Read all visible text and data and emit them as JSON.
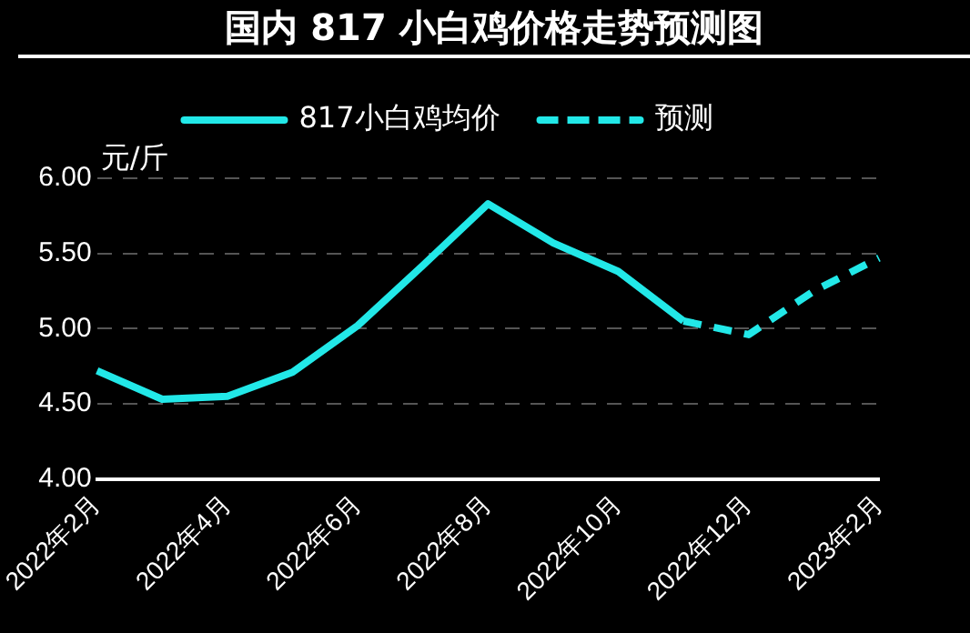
{
  "chart_data": {
    "type": "line",
    "title": "国内 817 小白鸡价格走势预测图",
    "ylabel": "元/斤",
    "categories": [
      "2022年2月",
      null,
      "2022年4月",
      null,
      "2022年6月",
      null,
      "2022年8月",
      null,
      "2022年10月",
      null,
      "2022年12月",
      null,
      "2023年2月"
    ],
    "series": [
      {
        "name": "817小白鸡均价",
        "color": "#22e8e8",
        "line_style": "solid",
        "values": [
          4.72,
          4.53,
          4.55,
          4.71,
          5.02,
          5.42,
          5.83,
          5.57,
          5.38,
          5.05,
          null,
          null,
          null
        ]
      },
      {
        "name": "预测",
        "color": "#22e8e8",
        "line_style": "dashed",
        "values": [
          null,
          null,
          null,
          null,
          null,
          null,
          null,
          null,
          null,
          5.05,
          4.96,
          5.25,
          5.47
        ]
      }
    ],
    "ylim": [
      4,
      6
    ],
    "yticks": [
      {
        "value": 4,
        "label": "4.00"
      },
      {
        "value": 4.5,
        "label": "4.50"
      },
      {
        "value": 5,
        "label": "5.00"
      },
      {
        "value": 5.5,
        "label": "5.50"
      },
      {
        "value": 6,
        "label": "6.00"
      }
    ],
    "grid": "y",
    "legend": "top",
    "marker": "none"
  }
}
